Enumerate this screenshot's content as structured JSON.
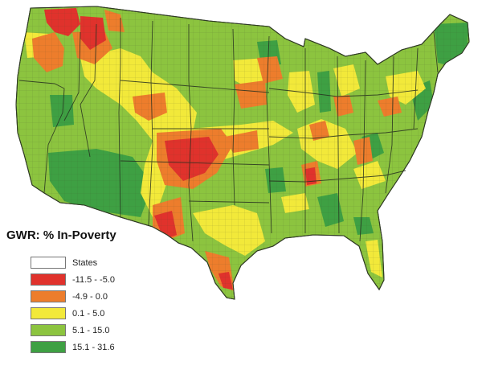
{
  "legend": {
    "title": "GWR: % In-Poverty",
    "items": [
      {
        "label": "States",
        "color": "#ffffff"
      },
      {
        "label": "-11.5 - -5.0",
        "color": "#e0322c"
      },
      {
        "label": "-4.9 - 0.0",
        "color": "#ed7d2c"
      },
      {
        "label": "0.1 - 5.0",
        "color": "#f2e93a"
      },
      {
        "label": "5.1 - 15.0",
        "color": "#8cc43f"
      },
      {
        "label": "15.1 - 31.6",
        "color": "#3ea043"
      }
    ]
  },
  "colors": {
    "negative_strong": "#e0322c",
    "negative": "#ed7d2c",
    "low": "#f2e93a",
    "medium": "#8cc43f",
    "high": "#3ea043",
    "boundary": "#2f3a24"
  }
}
